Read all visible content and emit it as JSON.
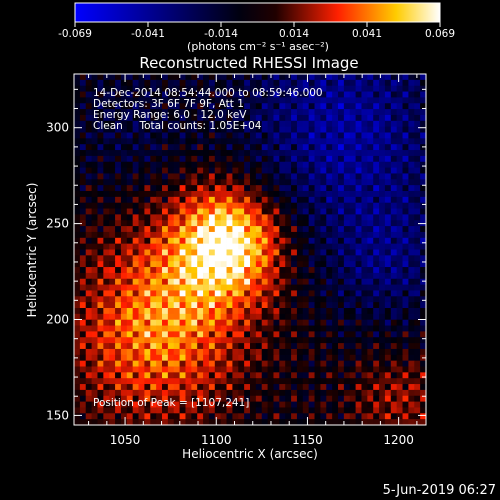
{
  "chart_data": {
    "type": "heatmap",
    "title": "Reconstructed RHESSI Image",
    "xlabel": "Heliocentric X (arcsec)",
    "ylabel": "Heliocentric Y (arcsec)",
    "xlim": [
      1022,
      1215
    ],
    "ylim": [
      145,
      328
    ],
    "x_ticks": [
      1050,
      1100,
      1150,
      1200
    ],
    "y_ticks": [
      150,
      200,
      250,
      300
    ],
    "colorbar": {
      "min": -0.069,
      "max": 0.069,
      "ticks": [
        "-0.069",
        "-0.041",
        "-0.014",
        "0.014",
        "0.041",
        "0.069"
      ],
      "label": "(photons cm⁻² s⁻¹ asec⁻²)",
      "colormap": [
        "#0000ff",
        "#000000",
        "#ff0000",
        "#ffff00",
        "#ffffff"
      ]
    },
    "peak": [
      1107,
      241
    ],
    "annotations": [
      "14-Dec-2014 08:54:44.000 to 08:59:46.000",
      "Detectors: 3F 6F 7F 9F, Att 1",
      "Energy Range: 6.0 - 12.0 keV",
      "Clean     Total counts: 1.05E+04"
    ],
    "peak_label": "Position of Peak = [1107,241]"
  },
  "footer_date": "5-Jun-2019 06:27"
}
